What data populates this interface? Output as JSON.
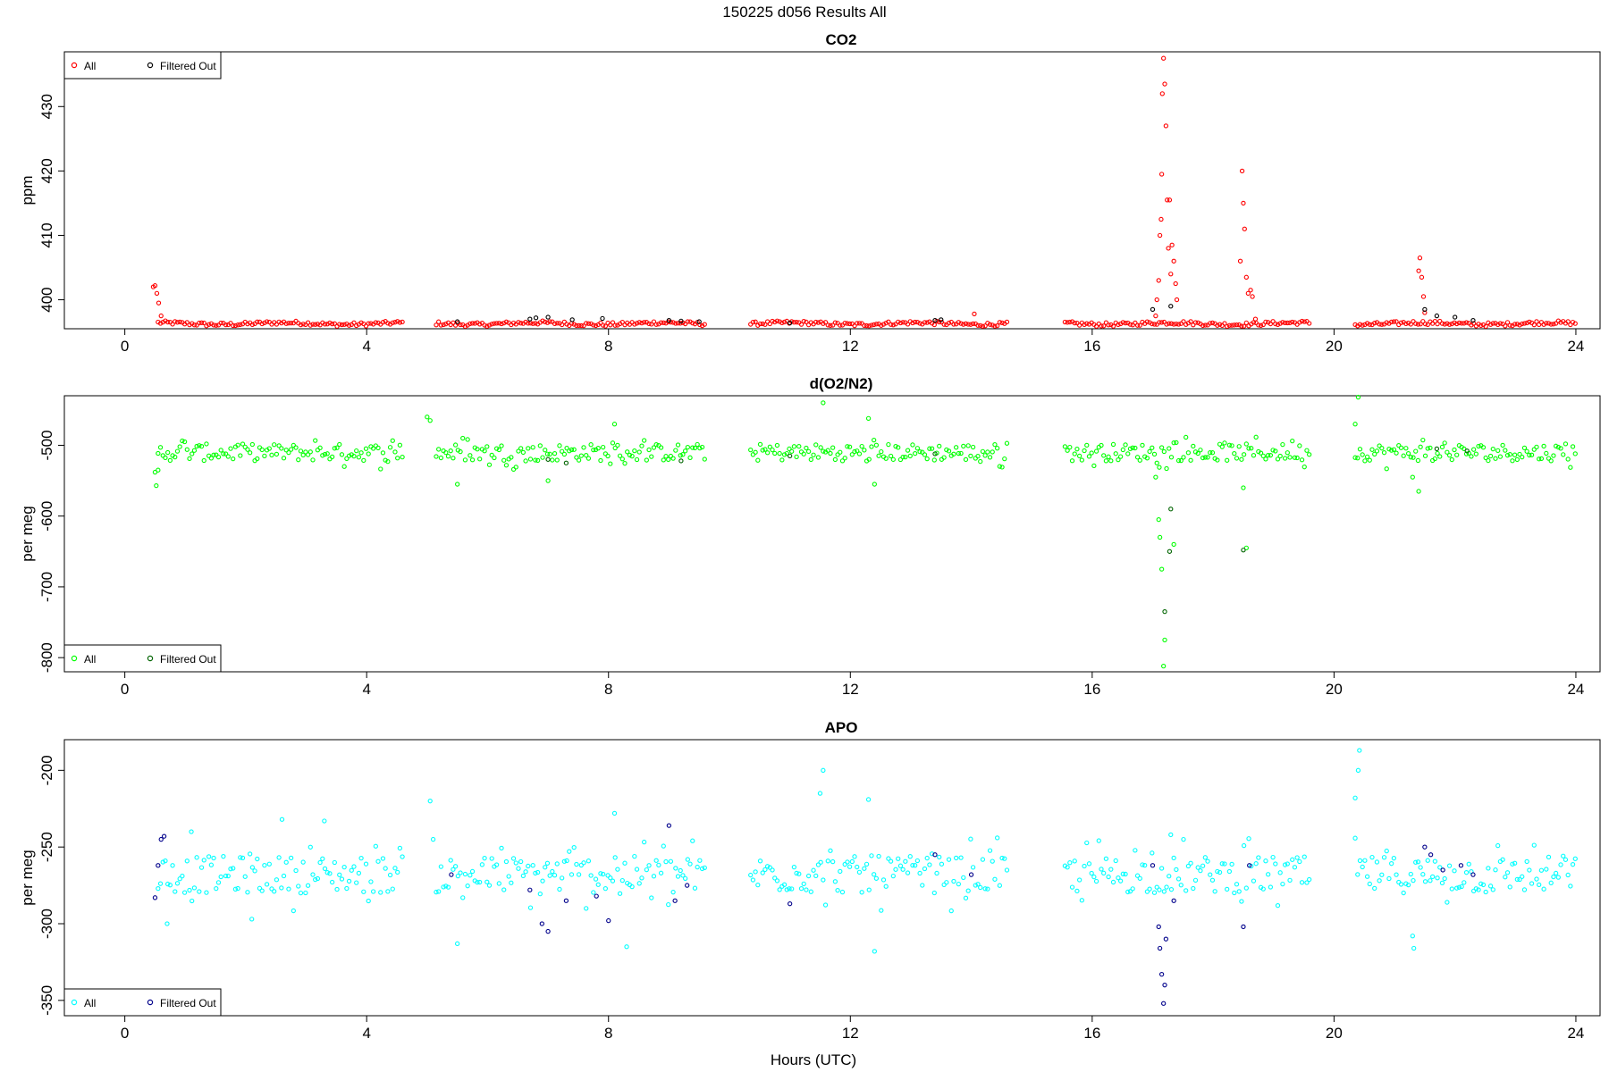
{
  "figure": {
    "title": "150225   d056   Results All",
    "xlabel": "Hours (UTC)"
  },
  "chart_data": [
    {
      "type": "scatter",
      "title": "CO2",
      "xlabel": "",
      "ylabel": "ppm",
      "xlim": [
        -1,
        24.4
      ],
      "ylim": [
        395.5,
        438.5
      ],
      "xticks": [
        "0",
        "4",
        "8",
        "12",
        "16",
        "20",
        "24"
      ],
      "yticks": [
        "400",
        "410",
        "420",
        "430"
      ],
      "grid": false,
      "legend_position": "top-left",
      "colors": {
        "all": "#ff0000",
        "filtered": "#000000"
      },
      "segments": [
        [
          0.5,
          4.6
        ],
        [
          5.1,
          9.6
        ],
        [
          10.3,
          14.6
        ],
        [
          15.5,
          19.6
        ],
        [
          20.3,
          24.0
        ]
      ],
      "series": [
        {
          "name": "All",
          "description": "continuous samples forming a near-flat band",
          "band_x": [
            [
              0.65,
              4.6
            ],
            [
              5.1,
              9.6
            ],
            [
              10.3,
              14.6
            ],
            [
              15.5,
              19.6
            ],
            [
              20.3,
              24.0
            ]
          ],
          "band_y": 396.3,
          "points": [
            {
              "x": 0.47,
              "y": 402.0
            },
            {
              "x": 0.5,
              "y": 402.2
            },
            {
              "x": 0.53,
              "y": 401.0
            },
            {
              "x": 0.56,
              "y": 399.5
            },
            {
              "x": 0.6,
              "y": 397.5
            },
            {
              "x": 14.05,
              "y": 397.8
            },
            {
              "x": 17.05,
              "y": 397.5
            },
            {
              "x": 17.07,
              "y": 400.0
            },
            {
              "x": 17.1,
              "y": 403.0
            },
            {
              "x": 17.12,
              "y": 410.0
            },
            {
              "x": 17.14,
              "y": 412.5
            },
            {
              "x": 17.15,
              "y": 419.5
            },
            {
              "x": 17.16,
              "y": 432.0
            },
            {
              "x": 17.18,
              "y": 437.5
            },
            {
              "x": 17.2,
              "y": 433.5
            },
            {
              "x": 17.22,
              "y": 427.0
            },
            {
              "x": 17.24,
              "y": 415.5
            },
            {
              "x": 17.26,
              "y": 408.0
            },
            {
              "x": 17.28,
              "y": 415.5
            },
            {
              "x": 17.3,
              "y": 404.0
            },
            {
              "x": 17.32,
              "y": 408.5
            },
            {
              "x": 17.35,
              "y": 406.0
            },
            {
              "x": 17.38,
              "y": 402.5
            },
            {
              "x": 17.4,
              "y": 400.0
            },
            {
              "x": 18.45,
              "y": 406.0
            },
            {
              "x": 18.48,
              "y": 420.0
            },
            {
              "x": 18.5,
              "y": 415.0
            },
            {
              "x": 18.52,
              "y": 411.0
            },
            {
              "x": 18.55,
              "y": 403.5
            },
            {
              "x": 18.58,
              "y": 401.0
            },
            {
              "x": 18.62,
              "y": 401.5
            },
            {
              "x": 18.65,
              "y": 400.5
            },
            {
              "x": 18.7,
              "y": 397.0
            },
            {
              "x": 21.4,
              "y": 404.5
            },
            {
              "x": 21.42,
              "y": 406.5
            },
            {
              "x": 21.45,
              "y": 403.5
            },
            {
              "x": 21.48,
              "y": 400.5
            },
            {
              "x": 21.5,
              "y": 398.0
            }
          ]
        },
        {
          "name": "Filtered Out",
          "points": [
            {
              "x": 5.5,
              "y": 396.6
            },
            {
              "x": 6.7,
              "y": 397.0
            },
            {
              "x": 6.8,
              "y": 397.2
            },
            {
              "x": 7.0,
              "y": 397.3
            },
            {
              "x": 7.4,
              "y": 396.9
            },
            {
              "x": 7.9,
              "y": 397.1
            },
            {
              "x": 9.0,
              "y": 396.8
            },
            {
              "x": 9.2,
              "y": 396.7
            },
            {
              "x": 9.5,
              "y": 396.6
            },
            {
              "x": 11.0,
              "y": 396.4
            },
            {
              "x": 13.4,
              "y": 396.8
            },
            {
              "x": 13.5,
              "y": 396.9
            },
            {
              "x": 17.0,
              "y": 398.5
            },
            {
              "x": 17.3,
              "y": 399.0
            },
            {
              "x": 21.5,
              "y": 398.5
            },
            {
              "x": 21.7,
              "y": 397.5
            },
            {
              "x": 22.0,
              "y": 397.3
            },
            {
              "x": 22.3,
              "y": 396.8
            }
          ]
        }
      ]
    },
    {
      "type": "scatter",
      "title": "d(O2/N2)",
      "xlabel": "",
      "ylabel": "per meg",
      "xlim": [
        -1,
        24.4
      ],
      "ylim": [
        -820,
        -430
      ],
      "xticks": [
        "0",
        "4",
        "8",
        "12",
        "16",
        "20",
        "24"
      ],
      "yticks": [
        "-800",
        "-700",
        "-600",
        "-500"
      ],
      "grid": false,
      "legend_position": "bottom-left",
      "colors": {
        "all": "#00ff00",
        "filtered": "#006400"
      },
      "segments": [
        [
          0.5,
          4.6
        ],
        [
          5.1,
          9.6
        ],
        [
          10.3,
          14.6
        ],
        [
          15.5,
          19.6
        ],
        [
          20.3,
          24.0
        ]
      ],
      "series": [
        {
          "name": "All",
          "description": "scattered samples around -510 per meg",
          "band_y": -510,
          "band_spread": 12,
          "points": [
            {
              "x": 0.5,
              "y": -538
            },
            {
              "x": 0.52,
              "y": -557
            },
            {
              "x": 0.55,
              "y": -535
            },
            {
              "x": 5.0,
              "y": -460
            },
            {
              "x": 5.05,
              "y": -465
            },
            {
              "x": 5.5,
              "y": -555
            },
            {
              "x": 7.0,
              "y": -550
            },
            {
              "x": 8.1,
              "y": -470
            },
            {
              "x": 11.55,
              "y": -440
            },
            {
              "x": 12.3,
              "y": -462
            },
            {
              "x": 12.4,
              "y": -555
            },
            {
              "x": 17.05,
              "y": -545
            },
            {
              "x": 17.1,
              "y": -605
            },
            {
              "x": 17.12,
              "y": -630
            },
            {
              "x": 17.15,
              "y": -675
            },
            {
              "x": 17.18,
              "y": -812
            },
            {
              "x": 17.2,
              "y": -775
            },
            {
              "x": 17.35,
              "y": -640
            },
            {
              "x": 18.5,
              "y": -560
            },
            {
              "x": 18.55,
              "y": -645
            },
            {
              "x": 20.35,
              "y": -470
            },
            {
              "x": 20.4,
              "y": -432
            },
            {
              "x": 21.3,
              "y": -545
            },
            {
              "x": 21.4,
              "y": -565
            }
          ]
        },
        {
          "name": "Filtered Out",
          "points": [
            {
              "x": 7.0,
              "y": -520
            },
            {
              "x": 7.3,
              "y": -525
            },
            {
              "x": 9.2,
              "y": -522
            },
            {
              "x": 11.0,
              "y": -515
            },
            {
              "x": 13.4,
              "y": -512
            },
            {
              "x": 17.2,
              "y": -735
            },
            {
              "x": 17.28,
              "y": -650
            },
            {
              "x": 17.3,
              "y": -590
            },
            {
              "x": 18.5,
              "y": -648
            },
            {
              "x": 21.7,
              "y": -505
            },
            {
              "x": 22.2,
              "y": -508
            }
          ]
        }
      ]
    },
    {
      "type": "scatter",
      "title": "APO",
      "xlabel": "Hours (UTC)",
      "ylabel": "per meg",
      "xlim": [
        -1,
        24.4
      ],
      "ylim": [
        -360,
        -180
      ],
      "xticks": [
        "0",
        "4",
        "8",
        "12",
        "16",
        "20",
        "24"
      ],
      "yticks": [
        "-350",
        "-300",
        "-250",
        "-200"
      ],
      "grid": false,
      "legend_position": "bottom-left",
      "colors": {
        "all": "#00ffff",
        "filtered": "#00008b"
      },
      "segments": [
        [
          0.5,
          4.6
        ],
        [
          5.1,
          9.6
        ],
        [
          10.3,
          14.6
        ],
        [
          15.5,
          19.6
        ],
        [
          20.3,
          24.0
        ]
      ],
      "series": [
        {
          "name": "All",
          "description": "scattered samples around -268 per meg",
          "band_y": -268,
          "band_spread": 12,
          "points": [
            {
              "x": 0.7,
              "y": -300
            },
            {
              "x": 1.1,
              "y": -240
            },
            {
              "x": 2.1,
              "y": -297
            },
            {
              "x": 2.6,
              "y": -232
            },
            {
              "x": 3.3,
              "y": -233
            },
            {
              "x": 5.05,
              "y": -220
            },
            {
              "x": 5.1,
              "y": -245
            },
            {
              "x": 5.5,
              "y": -313
            },
            {
              "x": 8.1,
              "y": -228
            },
            {
              "x": 8.3,
              "y": -315
            },
            {
              "x": 11.55,
              "y": -200
            },
            {
              "x": 11.5,
              "y": -215
            },
            {
              "x": 12.3,
              "y": -219
            },
            {
              "x": 12.4,
              "y": -318
            },
            {
              "x": 17.3,
              "y": -242
            },
            {
              "x": 20.35,
              "y": -218
            },
            {
              "x": 20.4,
              "y": -200
            },
            {
              "x": 20.42,
              "y": -187
            },
            {
              "x": 21.3,
              "y": -308
            },
            {
              "x": 21.32,
              "y": -316
            }
          ]
        },
        {
          "name": "Filtered Out",
          "points": [
            {
              "x": 0.5,
              "y": -283
            },
            {
              "x": 0.55,
              "y": -262
            },
            {
              "x": 0.6,
              "y": -245
            },
            {
              "x": 0.65,
              "y": -243
            },
            {
              "x": 5.4,
              "y": -268
            },
            {
              "x": 6.7,
              "y": -278
            },
            {
              "x": 6.9,
              "y": -300
            },
            {
              "x": 7.0,
              "y": -305
            },
            {
              "x": 7.3,
              "y": -285
            },
            {
              "x": 7.8,
              "y": -282
            },
            {
              "x": 8.0,
              "y": -298
            },
            {
              "x": 9.0,
              "y": -236
            },
            {
              "x": 9.1,
              "y": -285
            },
            {
              "x": 9.3,
              "y": -275
            },
            {
              "x": 11.0,
              "y": -287
            },
            {
              "x": 13.4,
              "y": -255
            },
            {
              "x": 14.0,
              "y": -268
            },
            {
              "x": 17.0,
              "y": -262
            },
            {
              "x": 17.1,
              "y": -302
            },
            {
              "x": 17.12,
              "y": -316
            },
            {
              "x": 17.15,
              "y": -333
            },
            {
              "x": 17.18,
              "y": -352
            },
            {
              "x": 17.2,
              "y": -340
            },
            {
              "x": 17.22,
              "y": -310
            },
            {
              "x": 17.35,
              "y": -285
            },
            {
              "x": 18.5,
              "y": -302
            },
            {
              "x": 18.6,
              "y": -262
            },
            {
              "x": 21.5,
              "y": -250
            },
            {
              "x": 21.6,
              "y": -255
            },
            {
              "x": 21.8,
              "y": -265
            },
            {
              "x": 22.1,
              "y": -262
            },
            {
              "x": 22.3,
              "y": -268
            }
          ]
        }
      ]
    }
  ]
}
